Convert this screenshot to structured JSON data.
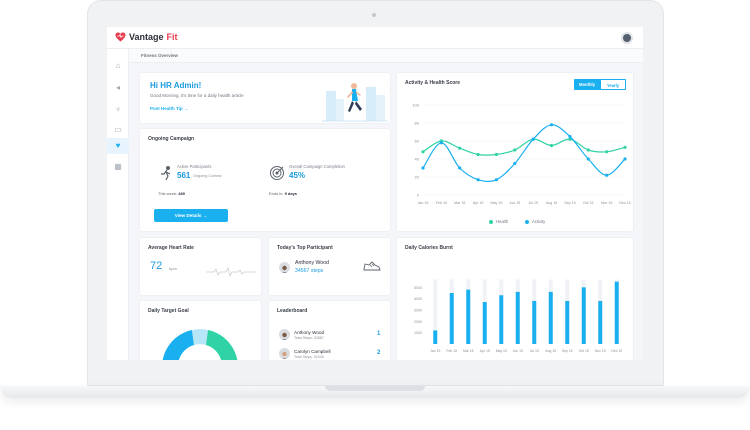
{
  "app": {
    "brand_main": "Vantage",
    "brand_accent": "Fit"
  },
  "breadcrumb": "Fitness Overview",
  "greeting": {
    "title": "Hi HR Admin!",
    "subtitle": "Good Morning, it's time for a daily health article",
    "link": "Post Health Tip →"
  },
  "campaign": {
    "title": "Ongoing Campaign",
    "active_label": "Active Participants",
    "active_value": "561",
    "active_sub": "Ongoing Contest",
    "this_week_label": "This week:",
    "this_week_value": "480",
    "completion_label": "Overall Campaign Completion",
    "completion_value": "45%",
    "ends_label": "Ends in:",
    "ends_value": "9 days",
    "button": "View Details →"
  },
  "activity_chart": {
    "title": "Activity & Health Score",
    "toggle_on": "Monthly",
    "toggle_off": "Yearly",
    "legend_health": "Health",
    "legend_activity": "Activity"
  },
  "heart_rate": {
    "title": "Average Heart Rate",
    "value": "72",
    "unit": "bpm"
  },
  "top_participant": {
    "title": "Today's Top Participant",
    "name": "Anthony Wood",
    "steps": "34567 steps"
  },
  "calories": {
    "title": "Daily Calories Burnt"
  },
  "target": {
    "title": "Daily Target Goal"
  },
  "leaderboard": {
    "title": "Leaderboard",
    "rows": [
      {
        "name": "Anthony Wood",
        "sub": "Total Steps: 34567",
        "rank": "1"
      },
      {
        "name": "Carolyn Campbell",
        "sub": "Total Steps: 32345",
        "rank": "2"
      }
    ]
  },
  "colors": {
    "blue": "#1ab0ef",
    "green": "#2fd3a6",
    "red": "#e53d4d"
  },
  "chart_data": [
    {
      "type": "line",
      "x": [
        "Jan 15",
        "Feb 15",
        "Mar 15",
        "Apr 15",
        "May 15",
        "Jun 15",
        "Jul 15",
        "Aug 15",
        "Sep 15",
        "Oct 15",
        "Nov 15",
        "Dec 15"
      ],
      "ylim": [
        0,
        100
      ],
      "yticks": [
        "0",
        "20",
        "40",
        "60",
        "80",
        "100"
      ],
      "series": [
        {
          "name": "Health",
          "values": [
            48,
            60,
            52,
            45,
            45,
            50,
            62,
            55,
            62,
            50,
            48,
            53
          ]
        },
        {
          "name": "Activity",
          "values": [
            30,
            58,
            30,
            17,
            17,
            35,
            62,
            78,
            65,
            40,
            22,
            40
          ]
        }
      ]
    },
    {
      "type": "bar",
      "categories": [
        "Jan 15",
        "Feb 15",
        "Mar 15",
        "Apr 15",
        "May 15",
        "Jun 15",
        "Jul 15",
        "Aug 15",
        "Sep 15",
        "Oct 15",
        "Nov 15",
        "Dec 15"
      ],
      "yticks": [
        "1000",
        "2000",
        "3000",
        "4000",
        "5000"
      ],
      "ylim": [
        0,
        6000
      ],
      "values": [
        1200,
        4500,
        4800,
        3700,
        4300,
        4600,
        3800,
        4600,
        3800,
        5000,
        3800,
        5500
      ],
      "max_values": [
        5700,
        5700,
        5700,
        5700,
        5700,
        5700,
        5700,
        5700,
        5700,
        5700,
        5700,
        5700
      ]
    }
  ]
}
